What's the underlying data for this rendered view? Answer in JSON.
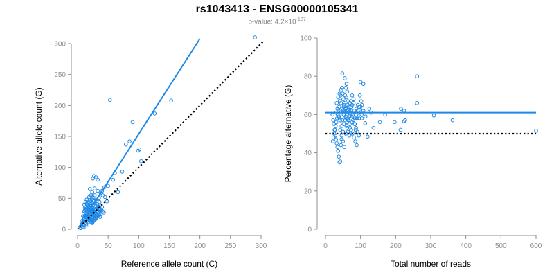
{
  "figure": {
    "title": "rs1043413 - ENSG00000105341",
    "subtitle_prefix": "p-value: 4.2×10",
    "subtitle_exponent": "-187",
    "point_color": "#1e88e5",
    "fit_color": "#1e88e5",
    "reference_color": "#000000"
  },
  "chart_data": [
    {
      "type": "scatter",
      "xlabel": "Reference allele count (C)",
      "ylabel": "Alternative allele count (G)",
      "xlim": [
        0,
        300
      ],
      "ylim": [
        0,
        300
      ],
      "xticks": [
        0,
        50,
        100,
        150,
        200,
        250,
        300
      ],
      "yticks": [
        0,
        50,
        100,
        150,
        200,
        250,
        300
      ],
      "grid": false,
      "fit_line": {
        "x": [
          2,
          200
        ],
        "y": [
          3,
          308
        ]
      },
      "reference_line": {
        "x": [
          0,
          305
        ],
        "y": [
          0,
          305
        ],
        "style": "dotted"
      },
      "points": [
        [
          290,
          310
        ],
        [
          153,
          208
        ],
        [
          126,
          187
        ],
        [
          90,
          173
        ],
        [
          101,
          129
        ],
        [
          99,
          127
        ],
        [
          85,
          142
        ],
        [
          79,
          137
        ],
        [
          53,
          209
        ],
        [
          104,
          110
        ],
        [
          61,
          91
        ],
        [
          73,
          93
        ],
        [
          58,
          80
        ],
        [
          50,
          70
        ],
        [
          44,
          68
        ],
        [
          40,
          62
        ],
        [
          66,
          60
        ],
        [
          48,
          45
        ],
        [
          45,
          52
        ],
        [
          41,
          55
        ],
        [
          38,
          58
        ],
        [
          30,
          84
        ],
        [
          27,
          86
        ],
        [
          25,
          82
        ],
        [
          33,
          80
        ],
        [
          20,
          65
        ],
        [
          24,
          60
        ],
        [
          28,
          66
        ],
        [
          33,
          62
        ],
        [
          35,
          50
        ],
        [
          36,
          44
        ],
        [
          32,
          41
        ],
        [
          30,
          48
        ],
        [
          28,
          55
        ],
        [
          26,
          47
        ],
        [
          25,
          52
        ],
        [
          22,
          55
        ],
        [
          23,
          49
        ],
        [
          21,
          47
        ],
        [
          19,
          52
        ],
        [
          18,
          44
        ],
        [
          20,
          40
        ],
        [
          22,
          38
        ],
        [
          24,
          36
        ],
        [
          26,
          40
        ],
        [
          28,
          35
        ],
        [
          30,
          33
        ],
        [
          32,
          30
        ],
        [
          34,
          28
        ],
        [
          36,
          26
        ],
        [
          38,
          24
        ],
        [
          29,
          26
        ],
        [
          27,
          28
        ],
        [
          25,
          30
        ],
        [
          23,
          32
        ],
        [
          21,
          34
        ],
        [
          19,
          36
        ],
        [
          17,
          38
        ],
        [
          15,
          41
        ],
        [
          13,
          44
        ],
        [
          11,
          40
        ],
        [
          12,
          35
        ],
        [
          14,
          33
        ],
        [
          16,
          31
        ],
        [
          18,
          29
        ],
        [
          20,
          27
        ],
        [
          22,
          25
        ],
        [
          24,
          23
        ],
        [
          26,
          21
        ],
        [
          28,
          19
        ],
        [
          30,
          17
        ],
        [
          25,
          15
        ],
        [
          23,
          17
        ],
        [
          21,
          19
        ],
        [
          19,
          21
        ],
        [
          17,
          23
        ],
        [
          15,
          25
        ],
        [
          13,
          27
        ],
        [
          11,
          29
        ],
        [
          10,
          25
        ],
        [
          12,
          22
        ],
        [
          14,
          20
        ],
        [
          16,
          18
        ],
        [
          18,
          16
        ],
        [
          20,
          14
        ],
        [
          22,
          12
        ],
        [
          24,
          10
        ],
        [
          17,
          11
        ],
        [
          15,
          13
        ],
        [
          13,
          15
        ],
        [
          11,
          17
        ],
        [
          10,
          19
        ],
        [
          9,
          21
        ],
        [
          8,
          14
        ],
        [
          10,
          12
        ],
        [
          12,
          10
        ],
        [
          14,
          8
        ],
        [
          16,
          7
        ],
        [
          11,
          6
        ],
        [
          9,
          8
        ],
        [
          7,
          10
        ],
        [
          6,
          5
        ],
        [
          8,
          4
        ],
        [
          10,
          3
        ],
        [
          5,
          2
        ],
        [
          20,
          22
        ],
        [
          22,
          30
        ],
        [
          26,
          34
        ],
        [
          29,
          42
        ],
        [
          31,
          46
        ],
        [
          33,
          38
        ],
        [
          35,
          36
        ],
        [
          37,
          33
        ],
        [
          39,
          31
        ],
        [
          41,
          29
        ],
        [
          43,
          27
        ],
        [
          40,
          36
        ],
        [
          37,
          39
        ],
        [
          27,
          45
        ],
        [
          24,
          43
        ],
        [
          21,
          42
        ],
        [
          18,
          47
        ],
        [
          16,
          43
        ],
        [
          15,
          48
        ],
        [
          17,
          33
        ],
        [
          19,
          31
        ],
        [
          21,
          29
        ],
        [
          23,
          27
        ],
        [
          25,
          25
        ],
        [
          27,
          23
        ],
        [
          29,
          21
        ],
        [
          31,
          19
        ],
        [
          33,
          21
        ],
        [
          35,
          23
        ],
        [
          37,
          20
        ],
        [
          20,
          35
        ],
        [
          22,
          33
        ],
        [
          24,
          31
        ],
        [
          26,
          29
        ],
        [
          28,
          27
        ],
        [
          30,
          25
        ],
        [
          32,
          23
        ],
        [
          34,
          33
        ],
        [
          36,
          31
        ],
        [
          38,
          29
        ],
        [
          14,
          36
        ],
        [
          12,
          31
        ],
        [
          13,
          24
        ],
        [
          15,
          22
        ],
        [
          17,
          20
        ],
        [
          19,
          18
        ],
        [
          21,
          16
        ],
        [
          23,
          14
        ],
        [
          25,
          12
        ],
        [
          27,
          14
        ],
        [
          29,
          16
        ]
      ]
    },
    {
      "type": "scatter",
      "xlabel": "Total number of reads",
      "ylabel": "Percentage alternative (G)",
      "xlim": [
        0,
        600
      ],
      "ylim": [
        0,
        100
      ],
      "xticks": [
        0,
        100,
        200,
        300,
        400,
        500,
        600
      ],
      "yticks": [
        0,
        20,
        40,
        60,
        80,
        100
      ],
      "grid": false,
      "fit_line": {
        "x": [
          0,
          600
        ],
        "y": [
          61,
          61
        ]
      },
      "reference_line": {
        "x": [
          0,
          600
        ],
        "y": [
          50,
          50
        ],
        "style": "dotted"
      },
      "points": [
        [
          600,
          51.5
        ],
        [
          362,
          57
        ],
        [
          309,
          59.5
        ],
        [
          261,
          80
        ],
        [
          261,
          66
        ],
        [
          227,
          57
        ],
        [
          224,
          56.5
        ],
        [
          215,
          63
        ],
        [
          214,
          52
        ],
        [
          224,
          62
        ],
        [
          197,
          56
        ],
        [
          170,
          60
        ],
        [
          155,
          56
        ],
        [
          137,
          53
        ],
        [
          130,
          61
        ],
        [
          125,
          63
        ],
        [
          120,
          48.5
        ],
        [
          114,
          59
        ],
        [
          113,
          55.5
        ],
        [
          108,
          76
        ],
        [
          105,
          62
        ],
        [
          104,
          65
        ],
        [
          103,
          60
        ],
        [
          102,
          67
        ],
        [
          100,
          77
        ],
        [
          98,
          70
        ],
        [
          96,
          64
        ],
        [
          94,
          61
        ],
        [
          92,
          65
        ],
        [
          90,
          58
        ],
        [
          88,
          63
        ],
        [
          86,
          52
        ],
        [
          84,
          55
        ],
        [
          82,
          62
        ],
        [
          80,
          66
        ],
        [
          78,
          60
        ],
        [
          76,
          70
        ],
        [
          74,
          64
        ],
        [
          72,
          58
        ],
        [
          70,
          53
        ],
        [
          68,
          49
        ],
        [
          66,
          61
        ],
        [
          64,
          67
        ],
        [
          62,
          72
        ],
        [
          60,
          76
        ],
        [
          58,
          74
        ],
        [
          56,
          62
        ],
        [
          54,
          58
        ],
        [
          52,
          55
        ],
        [
          50,
          51
        ],
        [
          48,
          81.5
        ],
        [
          46,
          47
        ],
        [
          44,
          44
        ],
        [
          42,
          35.5
        ],
        [
          40,
          35
        ],
        [
          38,
          38
        ],
        [
          36,
          41
        ],
        [
          34,
          43
        ],
        [
          32,
          45
        ],
        [
          30,
          47
        ],
        [
          28,
          49
        ],
        [
          26,
          52
        ],
        [
          24,
          55
        ],
        [
          22,
          57
        ],
        [
          20,
          60
        ],
        [
          55,
          79
        ],
        [
          59,
          69
        ],
        [
          63,
          65
        ],
        [
          67,
          63
        ],
        [
          71,
          61
        ],
        [
          75,
          59
        ],
        [
          79,
          57
        ],
        [
          83,
          55
        ],
        [
          87,
          53
        ],
        [
          91,
          51
        ],
        [
          95,
          49
        ],
        [
          45,
          73
        ],
        [
          43,
          70
        ],
        [
          41,
          67
        ],
        [
          39,
          64
        ],
        [
          37,
          62
        ],
        [
          35,
          60
        ],
        [
          33,
          58
        ],
        [
          31,
          56
        ],
        [
          29,
          54
        ],
        [
          27,
          52
        ],
        [
          25,
          50
        ],
        [
          23,
          48
        ],
        [
          21,
          46
        ],
        [
          47,
          74
        ],
        [
          49,
          71
        ],
        [
          51,
          68
        ],
        [
          53,
          65
        ],
        [
          57,
          63
        ],
        [
          61,
          60
        ],
        [
          65,
          57
        ],
        [
          69,
          55
        ],
        [
          73,
          52
        ],
        [
          77,
          50
        ],
        [
          81,
          48
        ],
        [
          85,
          46
        ],
        [
          89,
          44
        ],
        [
          36,
          69
        ],
        [
          40,
          71
        ],
        [
          44,
          66
        ],
        [
          48,
          63
        ],
        [
          52,
          60
        ],
        [
          56,
          57
        ],
        [
          60,
          54
        ],
        [
          64,
          51
        ],
        [
          68,
          59
        ],
        [
          72,
          62
        ],
        [
          76,
          65
        ],
        [
          80,
          68
        ],
        [
          42,
          57
        ],
        [
          46,
          54
        ],
        [
          50,
          62
        ],
        [
          54,
          66
        ],
        [
          58,
          59
        ],
        [
          62,
          56
        ],
        [
          66,
          64
        ],
        [
          70,
          66
        ],
        [
          34,
          63
        ],
        [
          38,
          59
        ],
        [
          42,
          52
        ],
        [
          46,
          49
        ],
        [
          50,
          46
        ],
        [
          54,
          43
        ],
        [
          58,
          50
        ],
        [
          62,
          53
        ],
        [
          30,
          61
        ],
        [
          32,
          66
        ],
        [
          40,
          58
        ],
        [
          44,
          61
        ],
        [
          48,
          57
        ],
        [
          52,
          64
        ],
        [
          56,
          70
        ],
        [
          60,
          62
        ],
        [
          64,
          58
        ],
        [
          68,
          62
        ],
        [
          72,
          67
        ],
        [
          76,
          56
        ],
        [
          80,
          61
        ],
        [
          84,
          58
        ],
        [
          88,
          60
        ],
        [
          92,
          62
        ],
        [
          96,
          58
        ],
        [
          100,
          64
        ],
        [
          104,
          58
        ],
        [
          108,
          62
        ]
      ]
    }
  ]
}
